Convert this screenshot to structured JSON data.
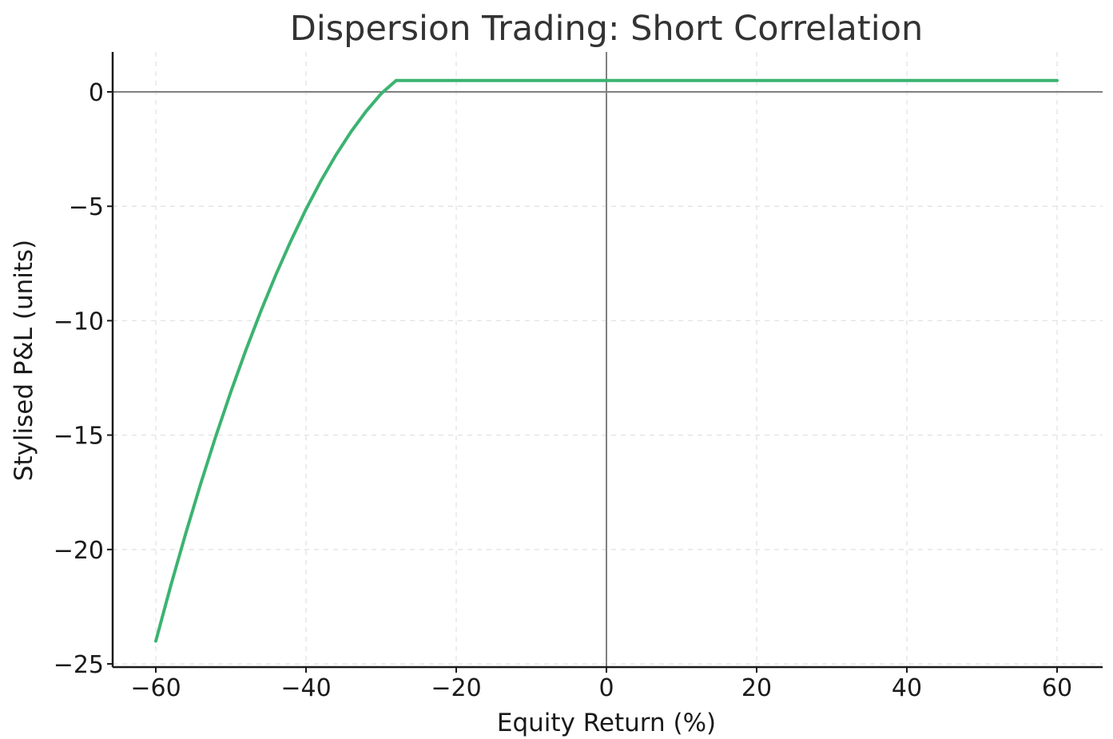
{
  "chart_data": {
    "type": "line",
    "title": "Dispersion Trading: Short Correlation",
    "xlabel": "Equity Return (%)",
    "ylabel": "Stylised P&L (units)",
    "xlim": [
      -65,
      60
    ],
    "ylim": [
      -25.2,
      1.7
    ],
    "x_ticks": [
      -60,
      -40,
      -20,
      0,
      20,
      40,
      60
    ],
    "x_tick_labels": [
      "−60",
      "−40",
      "−20",
      "0",
      "20",
      "40",
      "60"
    ],
    "y_ticks": [
      0,
      -5,
      -10,
      -15,
      -20,
      -25
    ],
    "y_tick_labels": [
      "0",
      "−5",
      "−10",
      "−15",
      "−20",
      "−25"
    ],
    "grid": true,
    "zero_lines": true,
    "series": [
      {
        "color": "#3cb371",
        "x": [
          -60,
          -58,
          -56,
          -54,
          -52,
          -50,
          -48,
          -46,
          -44,
          -42,
          -40,
          -38,
          -36,
          -34,
          -32,
          -30,
          -28,
          -26,
          -25,
          -20,
          -10,
          0,
          10,
          20,
          30,
          40,
          50,
          60
        ],
        "y": [
          -24.0,
          -21.57,
          -19.28,
          -17.1,
          -15.04,
          -13.1,
          -11.28,
          -9.57,
          -7.98,
          -6.5,
          -5.13,
          -3.88,
          -2.75,
          -1.74,
          -0.85,
          -0.08,
          0.5,
          0.5,
          0.5,
          0.5,
          0.5,
          0.5,
          0.5,
          0.5,
          0.5,
          0.5,
          0.5,
          0.5
        ]
      }
    ]
  }
}
